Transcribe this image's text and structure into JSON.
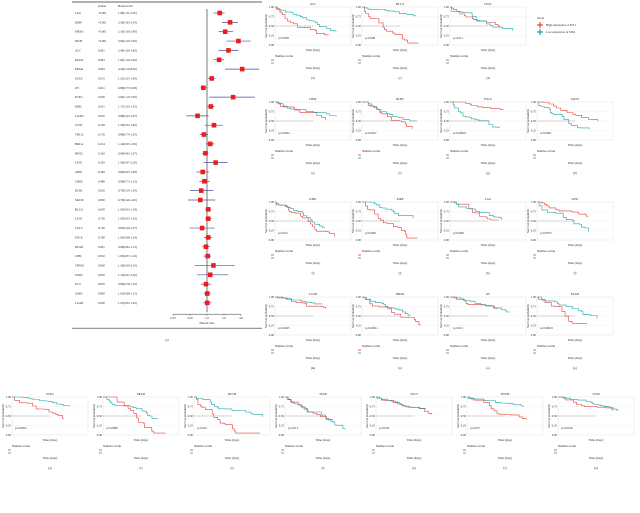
{
  "chart_data": [
    {
      "type": "forest",
      "panel_label": "(a)",
      "columns": [
        "pvalue",
        "Hazard ratio"
      ],
      "xlabel": "Hazard ratio",
      "xscale": "log",
      "xticks": [
        "0.25",
        "0.50",
        "1.0",
        "2.0",
        "4.0"
      ],
      "rows": [
        {
          "cancer": "LGG",
          "pvalue": "<0.001",
          "hr": 1.68,
          "lo": 1.31,
          "hi": 2.05,
          "text": "1.68(1.31-2.05)"
        },
        {
          "cancer": "KIRP",
          "pvalue": "<0.001",
          "hr": 2.56,
          "lo": 1.85,
          "hi": 3.54,
          "text": "2.56(1.85-3.54)"
        },
        {
          "cancer": "MESO",
          "pvalue": "<0.001",
          "hr": 2.1,
          "lo": 1.6,
          "hi": 2.9,
          "text": "2.10(1.60-2.90)"
        },
        {
          "cancer": "KICH",
          "pvalue": "<0.001",
          "hr": 3.6,
          "lo": 2.2,
          "hi": 5.9,
          "text": "3.60(2.20-5.90)"
        },
        {
          "cancer": "ACC",
          "pvalue": "0.001",
          "hr": 2.4,
          "lo": 1.6,
          "hi": 3.6,
          "text": "2.40(1.60-3.60)"
        },
        {
          "cancer": "PAAD",
          "pvalue": "0.003",
          "hr": 1.64,
          "lo": 1.3,
          "hi": 2.0,
          "text": "1.64(1.30-2.00)"
        },
        {
          "cancer": "PRAD",
          "pvalue": "0.003",
          "hr": 4.2,
          "lo": 2.1,
          "hi": 8.4,
          "text": "4.20(2.10-8.40)"
        },
        {
          "cancer": "UCEC",
          "pvalue": "0.015",
          "hr": 1.21,
          "lo": 1.05,
          "hi": 1.4,
          "text": "1.21(1.05-1.40)"
        },
        {
          "cancer": "OV",
          "pvalue": "0.021",
          "hr": 0.86,
          "lo": 0.77,
          "hi": 0.98,
          "text": "0.86(0.77-0.98)"
        },
        {
          "cancer": "PCPG",
          "pvalue": "0.030",
          "hr": 2.9,
          "lo": 1.1,
          "hi": 7.0,
          "text": "2.90(1.10-7.00)"
        },
        {
          "cancer": "KIRC",
          "pvalue": "0.031",
          "hr": 1.17,
          "lo": 1.02,
          "hi": 1.35,
          "text": "1.17(1.02-1.35)"
        },
        {
          "cancer": "COAD",
          "pvalue": "0.035",
          "hr": 0.68,
          "lo": 0.43,
          "hi": 1.07,
          "text": "0.68(0.43-1.07)"
        },
        {
          "cancer": "UVM",
          "pvalue": "0.128",
          "hr": 1.33,
          "lo": 0.92,
          "hi": 1.9,
          "text": "1.33(0.92-1.90)"
        },
        {
          "cancer": "THCA",
          "pvalue": "0.176",
          "hr": 0.88,
          "lo": 0.74,
          "hi": 1.05,
          "text": "0.88(0.74-1.05)"
        },
        {
          "cancer": "BRCA",
          "pvalue": "0.214",
          "hr": 1.14,
          "lo": 0.95,
          "hi": 1.36,
          "text": "1.14(0.95-1.36)"
        },
        {
          "cancer": "HNSC",
          "pvalue": "0.316",
          "hr": 0.94,
          "lo": 0.82,
          "hi": 1.07,
          "text": "0.94(0.82-1.07)"
        },
        {
          "cancer": "CESC",
          "pvalue": "0.329",
          "hr": 1.42,
          "lo": 0.87,
          "hi": 2.3,
          "text": "1.42(0.87-2.30)"
        },
        {
          "cancer": "GBM",
          "pvalue": "0.428",
          "hr": 0.84,
          "lo": 0.65,
          "hi": 1.08,
          "text": "0.84(0.65-1.08)"
        },
        {
          "cancer": "CHOL",
          "pvalue": "0.488",
          "hr": 0.9,
          "lo": 0.73,
          "hi": 1.12,
          "text": "0.90(0.73-1.12)"
        },
        {
          "cancer": "DLBC",
          "pvalue": "0.610",
          "hr": 0.79,
          "lo": 0.5,
          "hi": 1.3,
          "text": "0.79(0.50-1.30)"
        },
        {
          "cancer": "SKCM",
          "pvalue": "0.630",
          "hr": 0.76,
          "lo": 0.46,
          "hi": 1.4,
          "text": "0.76(0.46-1.40)"
        },
        {
          "cancer": "BLCA",
          "pvalue": "0.650",
          "hr": 1.05,
          "lo": 0.93,
          "hi": 1.18,
          "text": "1.05(0.93-1.18)"
        },
        {
          "cancer": "LUSC",
          "pvalue": "0.720",
          "hr": 1.05,
          "lo": 0.93,
          "hi": 1.2,
          "text": "1.05(0.93-1.20)"
        },
        {
          "cancer": "TGCT",
          "pvalue": "0.730",
          "hr": 0.82,
          "lo": 0.49,
          "hi": 1.37,
          "text": "0.82(0.49-1.37)"
        },
        {
          "cancer": "ESCA",
          "pvalue": "0.760",
          "hr": 1.05,
          "lo": 0.88,
          "hi": 1.24,
          "text": "1.05(0.88-1.24)"
        },
        {
          "cancer": "READ",
          "pvalue": "0.801",
          "hr": 0.96,
          "lo": 0.82,
          "hi": 1.13,
          "text": "0.96(0.82-1.13)"
        },
        {
          "cancer": "LIHC",
          "pvalue": "0.810",
          "hr": 1.03,
          "lo": 0.87,
          "hi": 1.19,
          "text": "1.03(0.87-1.19)"
        },
        {
          "cancer": "THYM",
          "pvalue": "0.830",
          "hr": 1.3,
          "lo": 0.6,
          "hi": 3.1,
          "text": "1.30(0.60-3.10)"
        },
        {
          "cancer": "STAD",
          "pvalue": "0.850",
          "hr": 1.14,
          "lo": 0.67,
          "hi": 2.4,
          "text": "1.14(0.67-2.40)"
        },
        {
          "cancer": "UCS",
          "pvalue": "0.870",
          "hr": 0.96,
          "lo": 0.78,
          "hi": 1.19,
          "text": "0.96(0.78-1.19)"
        },
        {
          "cancer": "SARC",
          "pvalue": "0.890",
          "hr": 1.01,
          "lo": 0.88,
          "hi": 1.15,
          "text": "1.01(0.88-1.15)"
        },
        {
          "cancer": "LUAD",
          "pvalue": "0.930",
          "hr": 1.01,
          "lo": 0.85,
          "hi": 1.2,
          "text": "1.01(0.85-1.20)"
        }
      ]
    },
    {
      "type": "line",
      "subtype": "kaplan-meier",
      "ylabel": "Survival probability",
      "xlabel": "Time (days)",
      "yticks": [
        "0.00",
        "0.25",
        "0.50",
        "0.75",
        "1.00"
      ],
      "risk_table_title": "Number at risk",
      "risk_table_ylabel": "Strata",
      "legend": {
        "title": "Strata",
        "position": "right",
        "entries": [
          "High expression of SIX1",
          "Low expression of SIX1"
        ]
      },
      "colors": {
        "high": "#e8413f",
        "low": "#1fa5a5"
      },
      "panels": [
        {
          "letter": "(b)",
          "title": "ACC",
          "p": "p<0.0001"
        },
        {
          "letter": "(c)",
          "title": "BLCA",
          "p": "p=0.048"
        },
        {
          "letter": "(d)",
          "title": "CESC",
          "p": "p=0.011"
        },
        {
          "letter": "(e)",
          "title": "CHOL",
          "p": "p=0.0094"
        },
        {
          "letter": "(f)",
          "title": "DLBC",
          "p": "p=0.0027"
        },
        {
          "letter": "(g)",
          "title": "ESCA",
          "p": "p=0.00019"
        },
        {
          "letter": "(h)",
          "title": "KICH",
          "p": "p<0.0001"
        },
        {
          "letter": "(i)",
          "title": "KIRC",
          "p": "p=0.012"
        },
        {
          "letter": "(j)",
          "title": "KIRP",
          "p": "p<0.0001"
        },
        {
          "letter": "(k)",
          "title": "LGG",
          "p": "p<0.0001"
        },
        {
          "letter": "(l)",
          "title": "LIHC",
          "p": "p=0.0073"
        },
        {
          "letter": "(m)",
          "title": "LUAD",
          "p": "p=0.0045"
        },
        {
          "letter": "(n)",
          "title": "MESO",
          "p": "p=0.00011"
        },
        {
          "letter": "(o)",
          "title": "OV",
          "p": "p=0.012"
        },
        {
          "letter": "(p)",
          "title": "PAAD",
          "p": "p=0.00025"
        },
        {
          "letter": "(q)",
          "title": "PCPG",
          "p": "p=0.0054"
        },
        {
          "letter": "(r)",
          "title": "PRAD",
          "p": "p=0.0088"
        },
        {
          "letter": "(s)",
          "title": "SKCM",
          "p": "p=0.021"
        },
        {
          "letter": "(t)",
          "title": "STAD",
          "p": "p=0.013"
        },
        {
          "letter": "(u)",
          "title": "TGCT",
          "p": "p=0.039"
        },
        {
          "letter": "(v)",
          "title": "THYM",
          "p": "p=0.027"
        },
        {
          "letter": "(w)",
          "title": "UVM",
          "p": "p=0.0016"
        }
      ]
    }
  ]
}
